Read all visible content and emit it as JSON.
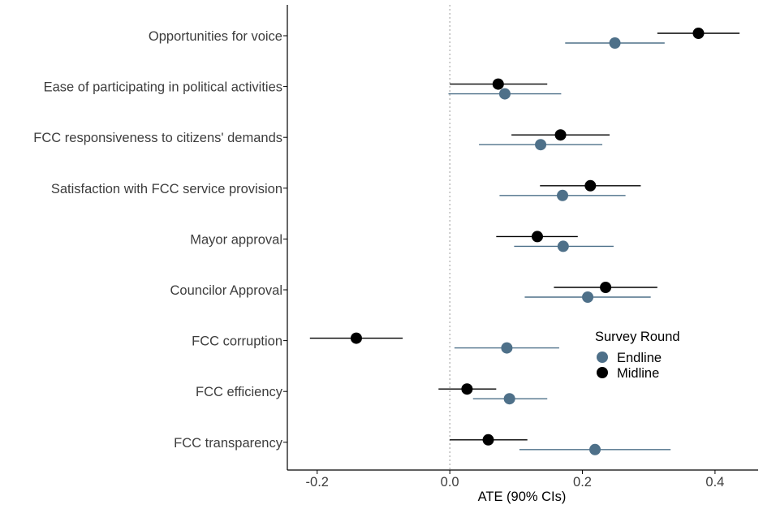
{
  "chart_data": {
    "type": "scatter",
    "xlabel": "ATE (90% CIs)",
    "xlim": [
      -0.245,
      0.465
    ],
    "xticks": [
      -0.2,
      0.0,
      0.2,
      0.4
    ],
    "xtick_labels": [
      "-0.2",
      "0.0",
      "0.2",
      "0.4"
    ],
    "reference_line_x": 0,
    "grid": false,
    "legend": {
      "title": "Survey Round",
      "position": "right",
      "entries": [
        {
          "label": "Endline",
          "color": "#4e7089"
        },
        {
          "label": "Midline",
          "color": "#000000"
        }
      ]
    },
    "categories": [
      "Opportunities for voice",
      "Ease of participating in political activities",
      "FCC responsiveness to citizens' demands",
      "Satisfaction with FCC service provision",
      "Mayor approval",
      "Councilor Approval",
      "FCC corruption",
      "FCC efficiency",
      "FCC transparency"
    ],
    "series": [
      {
        "name": "Midline",
        "color": "#000000",
        "estimates": [
          0.375,
          0.073,
          0.167,
          0.212,
          0.132,
          0.235,
          -0.141,
          0.026,
          0.058
        ],
        "ci_low": [
          0.313,
          0.0,
          0.093,
          0.136,
          0.07,
          0.157,
          -0.211,
          -0.017,
          0.0
        ],
        "ci_high": [
          0.437,
          0.147,
          0.241,
          0.288,
          0.193,
          0.313,
          -0.071,
          0.07,
          0.117
        ]
      },
      {
        "name": "Endline",
        "color": "#4e7089",
        "estimates": [
          0.249,
          0.083,
          0.137,
          0.17,
          0.171,
          0.208,
          0.086,
          0.09,
          0.219
        ],
        "ci_low": [
          0.174,
          -0.002,
          0.044,
          0.075,
          0.097,
          0.113,
          0.007,
          0.035,
          0.105
        ],
        "ci_high": [
          0.324,
          0.168,
          0.23,
          0.265,
          0.247,
          0.303,
          0.165,
          0.147,
          0.333
        ]
      }
    ]
  }
}
